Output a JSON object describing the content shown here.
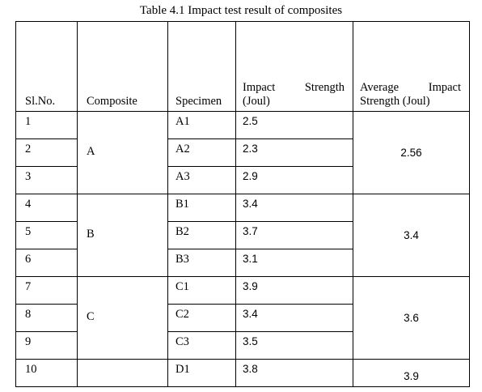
{
  "caption": "Table 4.1 Impact test result of composites",
  "headers": {
    "slno": "Sl.No.",
    "composite": "Composite",
    "specimen": "Specimen",
    "impact_a": "Impact",
    "impact_b": "Strength",
    "impact_c": "(Joul)",
    "avg_a": "Average",
    "avg_b": "Impact",
    "avg_c": "Strength (Joul)"
  },
  "rows": [
    {
      "slno": "1",
      "specimen": "A1",
      "impact": "2.5"
    },
    {
      "slno": "2",
      "specimen": "A2",
      "impact": "2.3"
    },
    {
      "slno": "3",
      "specimen": "A3",
      "impact": "2.9"
    },
    {
      "slno": "4",
      "specimen": "B1",
      "impact": "3.4"
    },
    {
      "slno": "5",
      "specimen": "B2",
      "impact": "3.7"
    },
    {
      "slno": "6",
      "specimen": "B3",
      "impact": "3.1"
    },
    {
      "slno": "7",
      "specimen": "C1",
      "impact": "3.9"
    },
    {
      "slno": "8",
      "specimen": "C2",
      "impact": "3.4"
    },
    {
      "slno": "9",
      "specimen": "C3",
      "impact": "3.5"
    },
    {
      "slno": "10",
      "specimen": "D1",
      "impact": "3.8"
    }
  ],
  "groups": [
    {
      "composite": "A",
      "average": "2.56"
    },
    {
      "composite": "B",
      "average": "3.4"
    },
    {
      "composite": "C",
      "average": "3.6"
    },
    {
      "composite": "",
      "average": "3.9"
    }
  ]
}
